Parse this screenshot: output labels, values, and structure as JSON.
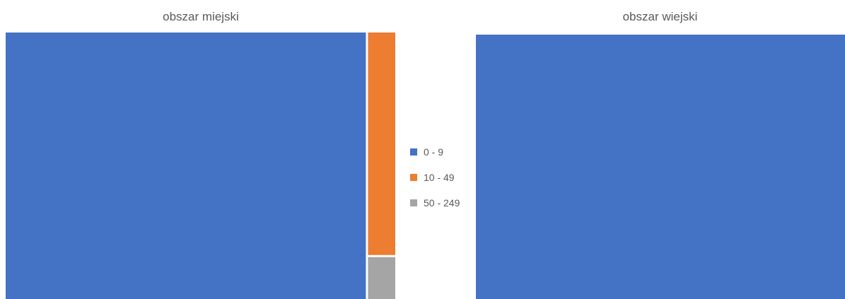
{
  "chart_data": [
    {
      "type": "treemap",
      "title": "obszar miejski",
      "categories": [
        "0 - 9",
        "10 - 49",
        "50 - 249"
      ],
      "values": [
        93.0,
        5.9,
        1.1
      ]
    },
    {
      "type": "treemap",
      "title": "obszar wiejski",
      "categories": [
        "0 - 9",
        "10 - 49",
        "50 - 249"
      ],
      "values": [
        100,
        0,
        0
      ]
    }
  ],
  "legend": {
    "items": [
      {
        "label": "0 - 9",
        "color": "#4472C4"
      },
      {
        "label": "10 - 49",
        "color": "#ED7D31"
      },
      {
        "label": "50 - 249",
        "color": "#A5A5A5"
      }
    ]
  }
}
